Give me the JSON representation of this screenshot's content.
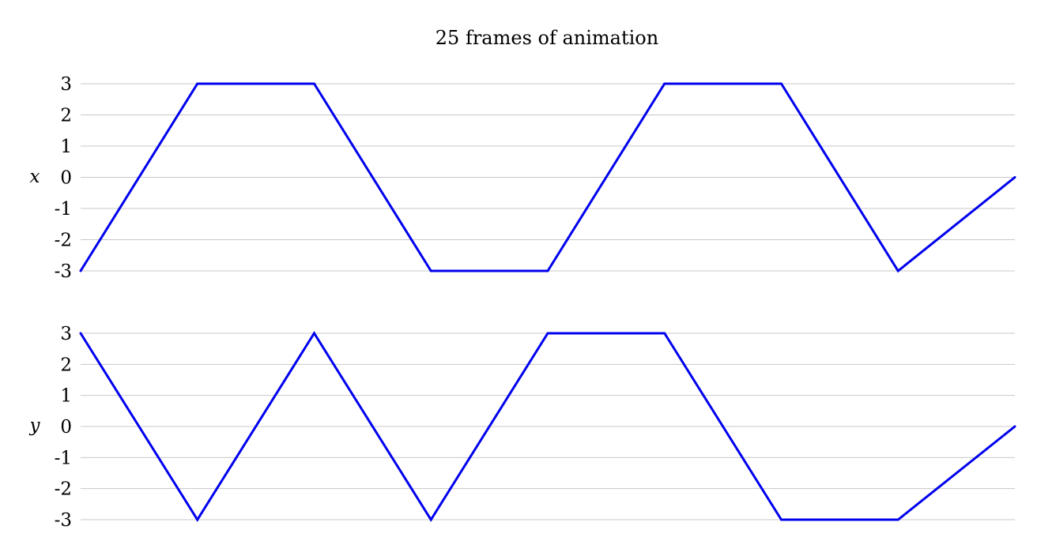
{
  "figure": {
    "title": "25 frames of animation"
  },
  "colors": {
    "series": "#0000ee",
    "grid": "#c8c8c8",
    "text": "#000000"
  },
  "chart_data": [
    {
      "type": "line",
      "title": "",
      "xlabel": "",
      "ylabel": "x",
      "ylim": [
        -3,
        3
      ],
      "yticks": [
        3,
        2,
        1,
        0,
        -1,
        -2,
        -3
      ],
      "ytick_labels": [
        "3",
        "2",
        "1",
        "0",
        "-1",
        "-2",
        "-3"
      ],
      "grid": true,
      "x": [
        0,
        1,
        2,
        3,
        4,
        5,
        6,
        7,
        8
      ],
      "values": [
        -3,
        3,
        3,
        -3,
        -3,
        3,
        3,
        -3,
        0
      ]
    },
    {
      "type": "line",
      "title": "",
      "xlabel": "",
      "ylabel": "y",
      "ylim": [
        -3,
        3
      ],
      "yticks": [
        3,
        2,
        1,
        0,
        -1,
        -2,
        -3
      ],
      "ytick_labels": [
        "3",
        "2",
        "1",
        "0",
        "-1",
        "-2",
        "-3"
      ],
      "grid": true,
      "x": [
        0,
        1,
        2,
        3,
        4,
        5,
        6,
        7,
        8
      ],
      "values": [
        3,
        -3,
        3,
        -3,
        3,
        3,
        -3,
        -3,
        0
      ]
    }
  ]
}
